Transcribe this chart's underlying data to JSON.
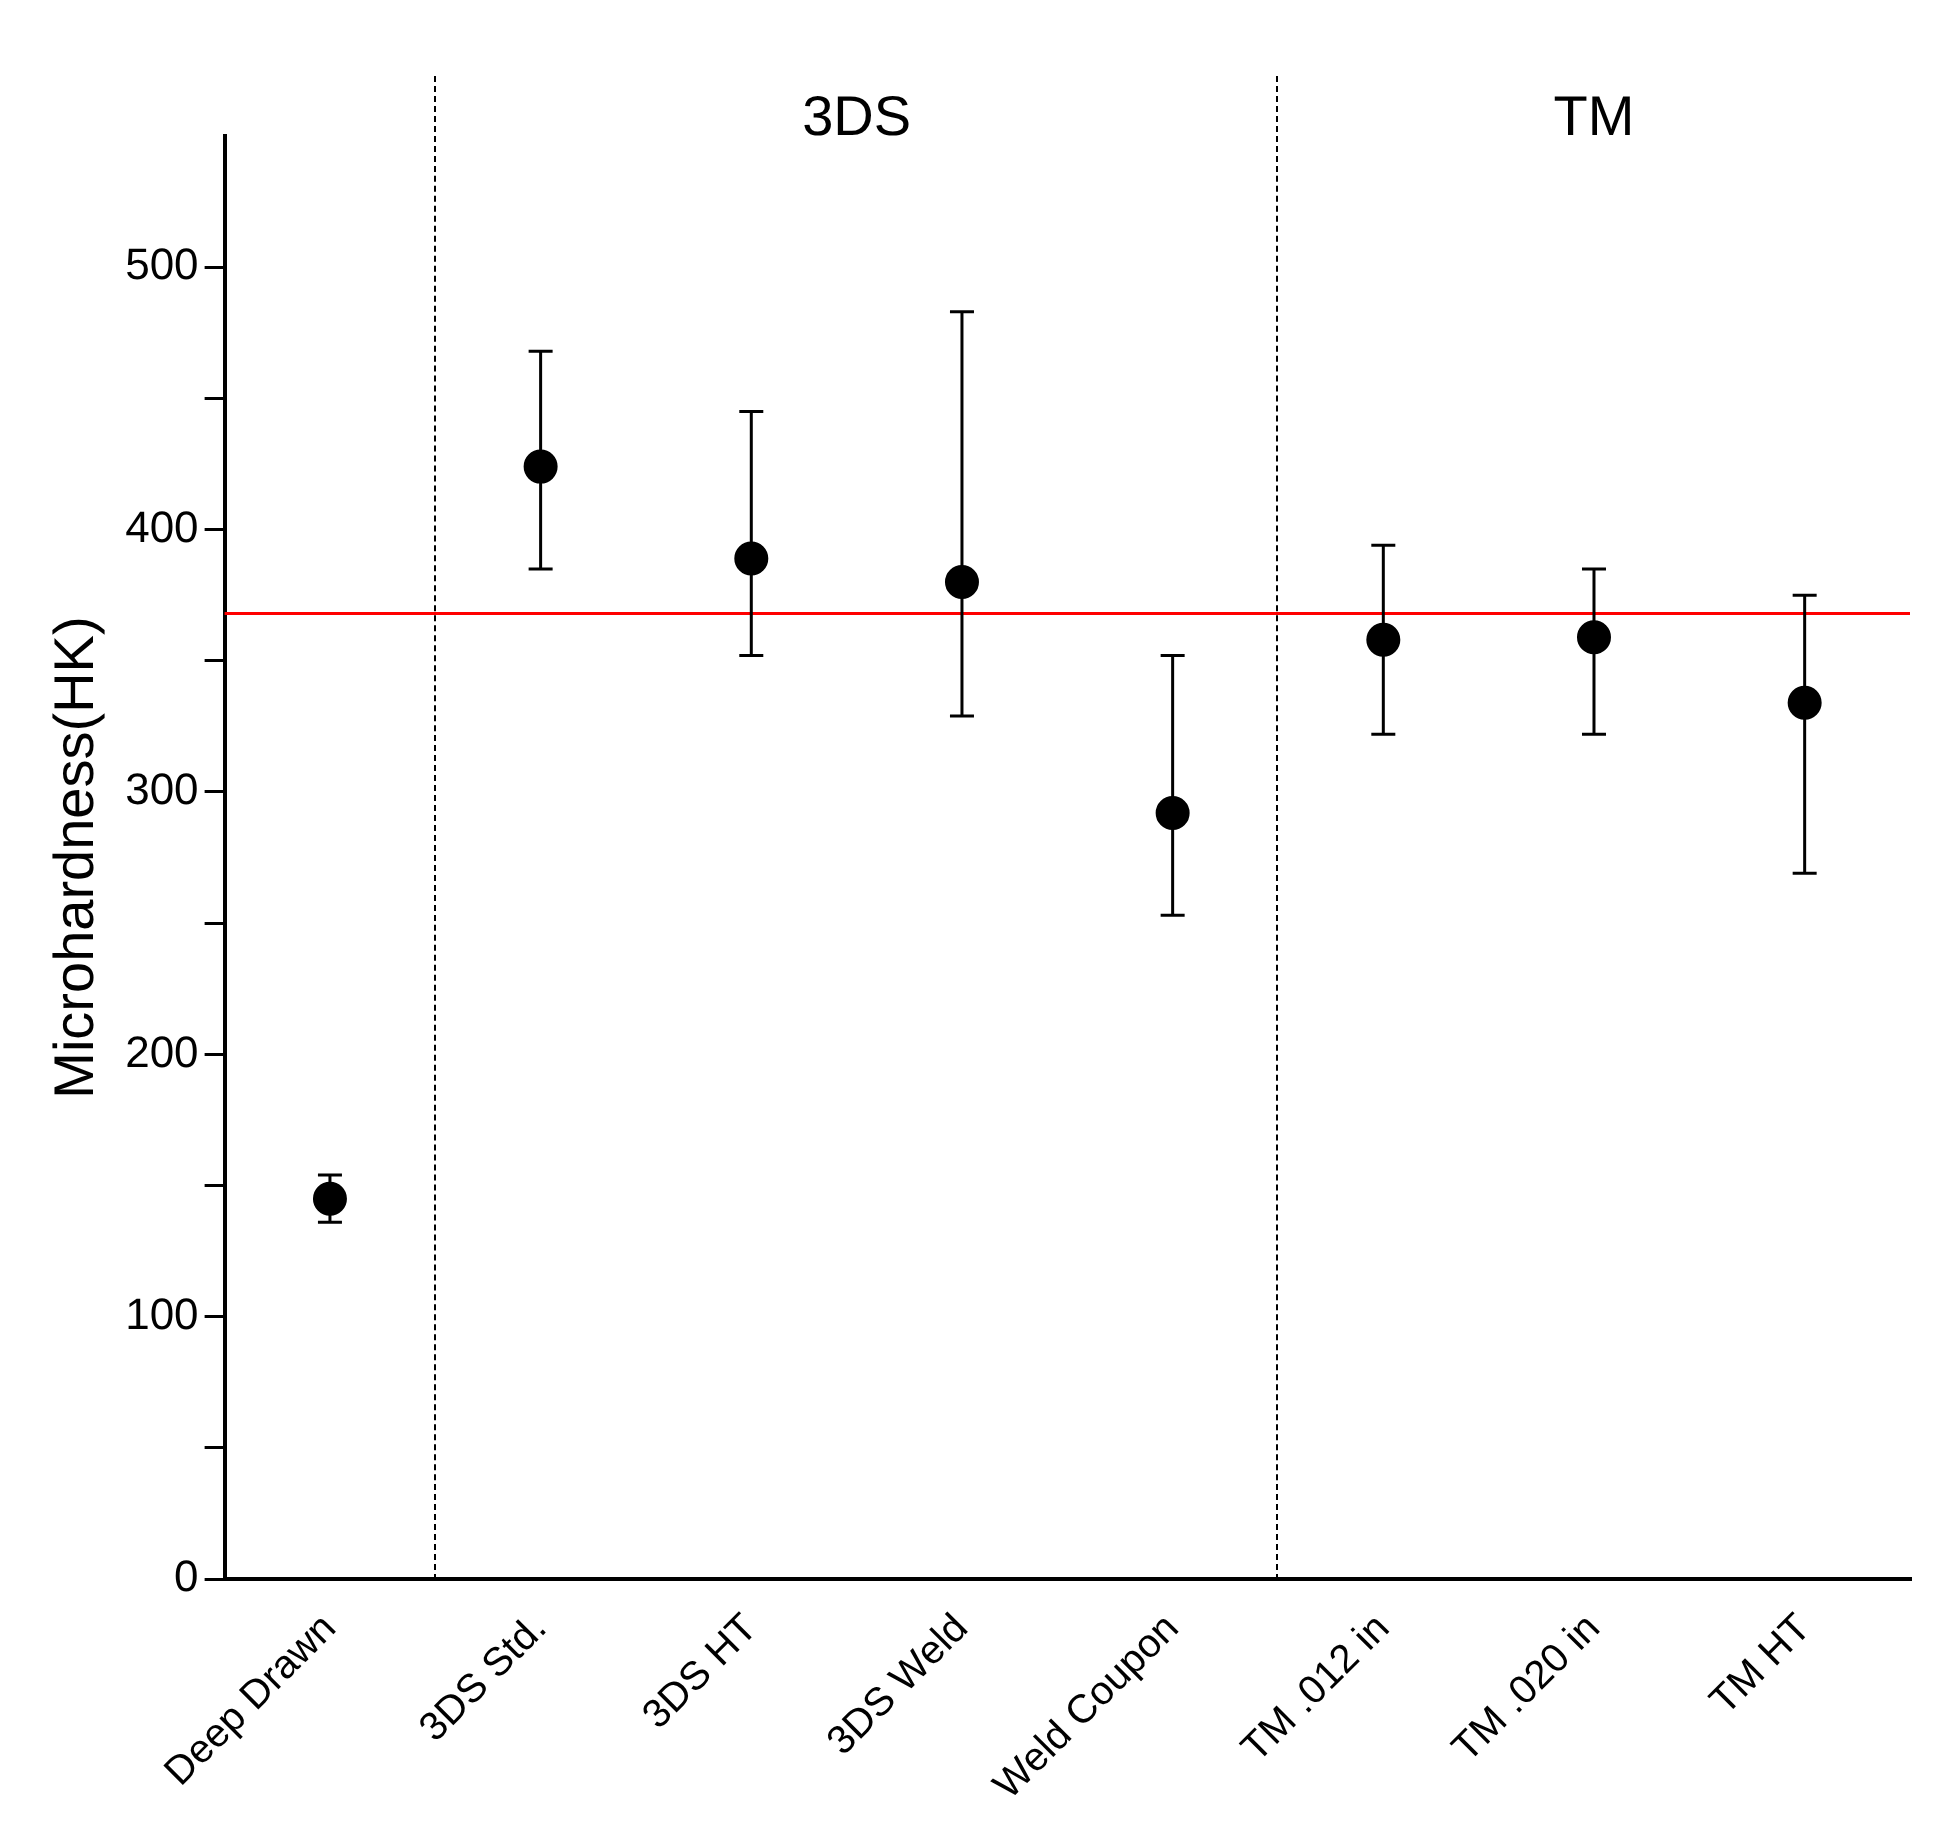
{
  "chart_data": {
    "type": "scatter",
    "ylabel": "Microhardness(HK)",
    "categories": [
      "Deep Drawn",
      "3DS Std.",
      "3DS HT",
      "3DS Weld",
      "Weld Coupon",
      "TM .012 in",
      "TM .020 in",
      "TM HT"
    ],
    "series": [
      {
        "color": "#000000",
        "values": [
          145,
          424,
          389,
          380,
          292,
          358,
          359,
          334
        ],
        "errors": [
          [
            136,
            154
          ],
          [
            385,
            468
          ],
          [
            352,
            445
          ],
          [
            329,
            483
          ],
          [
            253,
            352
          ],
          [
            322,
            394
          ],
          [
            322,
            385
          ],
          [
            269,
            375
          ]
        ]
      }
    ],
    "ylim": [
      0,
      550
    ],
    "yticks": [
      0,
      {
        "value": 50,
        "label": null
      },
      100,
      {
        "value": 150,
        "label": null
      },
      200,
      {
        "value": 250,
        "label": null
      },
      300,
      {
        "value": 350,
        "label": null
      },
      400,
      {
        "value": 450,
        "label": null
      },
      500
    ],
    "ref_lines": [
      {
        "axis": "y",
        "value": 368,
        "color": "#ff0000",
        "line_style": "solid"
      }
    ],
    "annotations": [
      "3DS",
      "TM"
    ],
    "marker": "circle",
    "grid": false,
    "legend": false
  }
}
